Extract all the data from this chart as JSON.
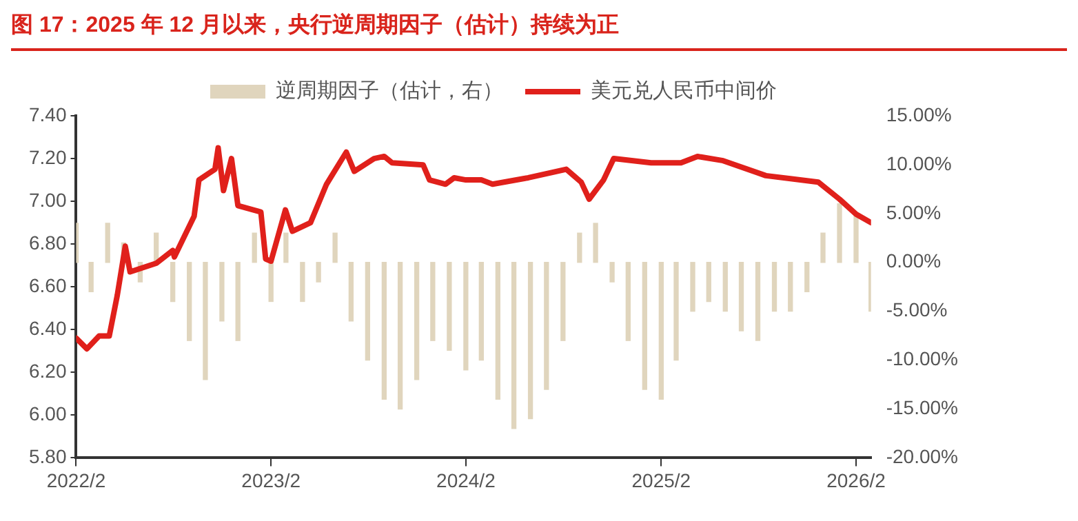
{
  "chart_data": {
    "type": "bar",
    "title": "图 17：2025 年 12 月以来，央行逆周期因子（估计）持续为正",
    "xlim": [
      "2022-02",
      "2026-03"
    ],
    "xticks": [
      {
        "value": "2022-02",
        "label": "2022/2"
      },
      {
        "value": "2023-02",
        "label": "2023/2"
      },
      {
        "value": "2024-02",
        "label": "2024/2"
      },
      {
        "value": "2025-02",
        "label": "2025/2"
      },
      {
        "value": "2026-02",
        "label": "2026/2"
      }
    ],
    "ylim": [
      5.8,
      7.4
    ],
    "yticks": [
      {
        "value": 5.8,
        "label": "5.80"
      },
      {
        "value": 6.0,
        "label": "6.00"
      },
      {
        "value": 6.2,
        "label": "6.20"
      },
      {
        "value": 6.4,
        "label": "6.40"
      },
      {
        "value": 6.6,
        "label": "6.60"
      },
      {
        "value": 6.8,
        "label": "6.80"
      },
      {
        "value": 7.0,
        "label": "7.00"
      },
      {
        "value": 7.2,
        "label": "7.20"
      },
      {
        "value": 7.4,
        "label": "7.40"
      }
    ],
    "y2lim": [
      -20,
      15
    ],
    "y2ticks": [
      {
        "value": -20,
        "label": "-20.00%"
      },
      {
        "value": -15,
        "label": "-15.00%"
      },
      {
        "value": -10,
        "label": "-10.00%"
      },
      {
        "value": -5,
        "label": "-5.00%"
      },
      {
        "value": 0,
        "label": "0.00%"
      },
      {
        "value": 5,
        "label": "5.00%"
      },
      {
        "value": 10,
        "label": "10.00%"
      },
      {
        "value": 15,
        "label": "15.00%"
      }
    ],
    "grid": false,
    "legend": "top",
    "series": [
      {
        "name": "逆周期因子（估计，右）",
        "axis": "y2",
        "color": "#e0d5bd",
        "x": [
          "2022-02",
          "2022-03",
          "2022-04",
          "2022-05",
          "2022-06",
          "2022-07",
          "2022-08",
          "2022-09",
          "2022-10",
          "2022-11",
          "2022-12",
          "2023-01",
          "2023-02",
          "2023-03",
          "2023-04",
          "2023-05",
          "2023-06",
          "2023-07",
          "2023-08",
          "2023-09",
          "2023-10",
          "2023-11",
          "2023-12",
          "2024-01",
          "2024-02",
          "2024-03",
          "2024-04",
          "2024-05",
          "2024-06",
          "2024-07",
          "2024-08",
          "2024-09",
          "2024-10",
          "2024-11",
          "2024-12",
          "2025-01",
          "2025-02",
          "2025-03",
          "2025-04",
          "2025-05",
          "2025-06",
          "2025-07",
          "2025-08",
          "2025-09",
          "2025-10",
          "2025-11",
          "2025-12",
          "2026-01",
          "2026-02",
          "2026-03"
        ],
        "values": [
          4,
          -3,
          4,
          2,
          -2,
          3,
          -4,
          -8,
          -12,
          -6,
          -8,
          3,
          -4,
          3,
          -4,
          -2,
          3,
          -6,
          -10,
          -14,
          -15,
          -12,
          -8,
          -9,
          -11,
          -10,
          -14,
          -17,
          -16,
          -13,
          -8,
          3,
          4,
          -2,
          -8,
          -13,
          -14,
          -10,
          -5,
          -4,
          -5,
          -7,
          -8,
          -5,
          -5,
          -3,
          3,
          6,
          5,
          -5
        ]
      },
      {
        "name": "美元兑人民币中间价",
        "type": "line",
        "color": "#e0201b",
        "x": [
          "2022-02-01",
          "2022-02-21",
          "2022-03-16",
          "2022-04-04",
          "2022-04-19",
          "2022-05-04",
          "2022-05-13",
          "2022-07-01",
          "2022-08-01",
          "2022-08-04",
          "2022-09-10",
          "2022-09-19",
          "2022-10-19",
          "2022-10-25",
          "2022-11-04",
          "2022-11-19",
          "2022-12-01",
          "2023-01-13",
          "2023-01-22",
          "2023-02-01",
          "2023-02-28",
          "2023-03-13",
          "2023-04-16",
          "2023-05-16",
          "2023-06-22",
          "2023-07-07",
          "2023-08-13",
          "2023-09-01",
          "2023-09-16",
          "2023-11-13",
          "2023-11-25",
          "2023-12-25",
          "2024-01-10",
          "2024-02-01",
          "2024-03-01",
          "2024-03-22",
          "2024-05-28",
          "2024-08-07",
          "2024-09-04",
          "2024-09-19",
          "2024-10-16",
          "2024-11-04",
          "2025-01-13",
          "2025-03-10",
          "2025-04-10",
          "2025-05-28",
          "2025-08-16",
          "2025-11-22",
          "2026-01-01",
          "2026-02-01",
          "2026-03-01"
        ],
        "values": [
          6.36,
          6.31,
          6.37,
          6.37,
          6.56,
          6.79,
          6.67,
          6.71,
          6.77,
          6.74,
          6.93,
          7.1,
          7.15,
          7.25,
          7.05,
          7.2,
          6.98,
          6.95,
          6.73,
          6.72,
          6.96,
          6.86,
          6.9,
          7.08,
          7.23,
          7.14,
          7.2,
          7.21,
          7.18,
          7.17,
          7.1,
          7.08,
          7.11,
          7.1,
          7.1,
          7.08,
          7.11,
          7.15,
          7.09,
          7.01,
          7.1,
          7.2,
          7.18,
          7.18,
          7.21,
          7.19,
          7.12,
          7.09,
          7.01,
          6.94,
          6.9
        ]
      }
    ]
  }
}
